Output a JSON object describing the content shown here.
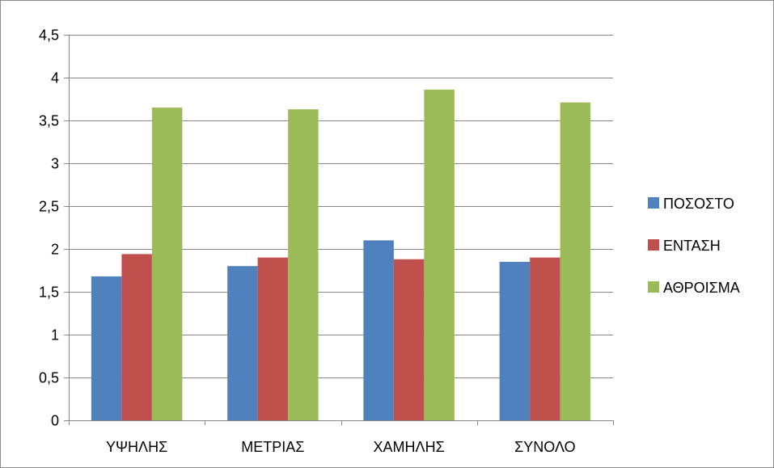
{
  "chart_data": {
    "type": "bar",
    "title": "",
    "xlabel": "",
    "ylabel": "",
    "categories": [
      "ΥΨΗΛΗΣ",
      "ΜΕΤΡΙΑΣ",
      "ΧΑΜΗΛΗΣ",
      "ΣΥΝΟΛΟ"
    ],
    "series": [
      {
        "name": "ΠΟΣΟΣΤΟ",
        "color": "#4f81bd",
        "values": [
          1.68,
          1.8,
          2.1,
          1.85
        ]
      },
      {
        "name": "ΕΝΤΑΣΗ",
        "color": "#c0504d",
        "values": [
          1.94,
          1.9,
          1.88,
          1.9
        ]
      },
      {
        "name": "ΑΘΡΟΙΣΜΑ",
        "color": "#9bbb59",
        "values": [
          3.65,
          3.63,
          3.86,
          3.71
        ]
      }
    ],
    "ylim": [
      0,
      4.5
    ],
    "yticks": [
      "0",
      "0,5",
      "1",
      "1,5",
      "2",
      "2,5",
      "3",
      "3,5",
      "4",
      "4,5"
    ],
    "grid": true,
    "legend_position": "right"
  }
}
